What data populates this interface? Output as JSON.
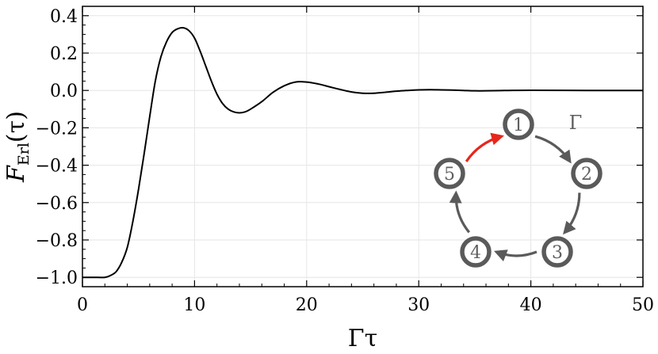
{
  "chart_data": {
    "type": "line",
    "xlabel": "Γτ",
    "ylabel_main": "F",
    "ylabel_sub": "Erl",
    "ylabel_arg": "(τ)",
    "xlim": [
      0,
      50
    ],
    "ylim": [
      -1.05,
      0.45
    ],
    "xticks": [
      0,
      10,
      20,
      30,
      40,
      50
    ],
    "xtick_labels": [
      "0",
      "10",
      "20",
      "30",
      "40",
      "50"
    ],
    "yticks": [
      -1.0,
      -0.8,
      -0.6,
      -0.4,
      -0.2,
      0.0,
      0.2,
      0.4
    ],
    "ytick_labels": [
      "−1.0",
      "−0.8",
      "−0.6",
      "−0.4",
      "−0.2",
      "0.0",
      "0.2",
      "0.4"
    ],
    "grid": true,
    "series": [
      {
        "x": [
          0,
          1,
          2,
          2.5,
          3,
          3.5,
          4,
          4.5,
          5,
          5.5,
          6,
          6.5,
          7,
          7.5,
          8,
          8.5,
          9,
          9.5,
          10,
          10.5,
          11,
          11.5,
          12,
          12.5,
          13,
          13.5,
          14,
          14.5,
          15,
          16,
          17,
          18,
          19,
          20,
          21,
          22,
          23,
          24,
          25,
          26,
          27,
          28,
          29,
          30,
          31,
          32,
          33,
          34,
          35,
          36,
          38,
          40,
          45,
          50
        ],
        "y": [
          -1.0,
          -1.0,
          -1.0,
          -0.99,
          -0.97,
          -0.92,
          -0.84,
          -0.7,
          -0.53,
          -0.34,
          -0.14,
          0.05,
          0.18,
          0.26,
          0.31,
          0.33,
          0.335,
          0.32,
          0.28,
          0.21,
          0.13,
          0.05,
          -0.02,
          -0.07,
          -0.1,
          -0.115,
          -0.12,
          -0.115,
          -0.1,
          -0.06,
          -0.01,
          0.025,
          0.045,
          0.045,
          0.035,
          0.02,
          0.005,
          -0.008,
          -0.015,
          -0.015,
          -0.01,
          -0.004,
          0.0,
          0.003,
          0.004,
          0.003,
          0.002,
          0.0,
          -0.002,
          -0.002,
          0.0,
          0.001,
          0.0,
          0.0
        ]
      }
    ],
    "inset": {
      "nodes": [
        "1",
        "2",
        "3",
        "4",
        "5"
      ],
      "rate_label": "Γ",
      "edge_color": "#5a5a5a",
      "highlight_color": "#e8261a"
    }
  }
}
